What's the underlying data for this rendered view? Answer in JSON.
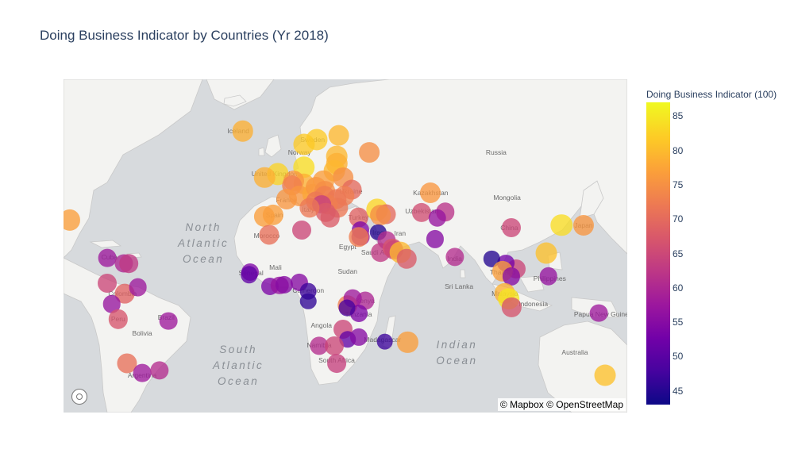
{
  "title": "Doing Business Indicator by Countries (Yr 2018)",
  "attribution": "© Mapbox © OpenStreetMap",
  "colorbar": {
    "title": "Doing Business Indicator (100)",
    "min": 43,
    "max": 87,
    "ticks": [
      85,
      80,
      75,
      70,
      65,
      60,
      55,
      50,
      45
    ],
    "colorscale": [
      "#0d0887",
      "#46039f",
      "#7201a8",
      "#9c179e",
      "#bd3786",
      "#d8576b",
      "#ed7953",
      "#fb9f3a",
      "#fdca26",
      "#f0f921"
    ]
  },
  "map_labels": {
    "countries": [
      "Iceland",
      "Sweden",
      "Norway",
      "Russia",
      "United Kingdom",
      "Ukraine",
      "Kazakhstan",
      "Mongolia",
      "France",
      "Spain",
      "Italy",
      "Uzbekistan",
      "Morocco",
      "Turkey",
      "Iraq",
      "Iran",
      "China",
      "Japan",
      "Egypt",
      "Saudi Arabia",
      "India",
      "Mali",
      "Senegal",
      "Sudan",
      "Thailand",
      "Philippines",
      "Cuba",
      "Colombia",
      "Cameroon",
      "Kenya",
      "Malaysia",
      "Indonesia",
      "Sri Lanka",
      "Peru",
      "Brazil",
      "Bolivia",
      "Angola",
      "Tanzania",
      "Madagascar",
      "Namibia",
      "South Africa",
      "Papua New Guinea",
      "Australia",
      "Argentina"
    ],
    "oceans": [
      "North Atlantic Ocean",
      "South Atlantic Ocean",
      "Indian Ocean"
    ]
  },
  "points": [
    {
      "country": "United States",
      "lat": 38,
      "lon": -97,
      "value": 77
    },
    {
      "country": "Cuba",
      "lat": 21.5,
      "lon": -80,
      "value": 58
    },
    {
      "country": "Haiti",
      "lat": 18.9,
      "lon": -72.3,
      "value": 60
    },
    {
      "country": "Dominican Republic",
      "lat": 18.7,
      "lon": -70.2,
      "value": 63
    },
    {
      "country": "Panama",
      "lat": 9,
      "lon": -80,
      "value": 65
    },
    {
      "country": "Colombia",
      "lat": 4,
      "lon": -72,
      "value": 69
    },
    {
      "country": "Venezuela",
      "lat": 7,
      "lon": -66,
      "value": 58
    },
    {
      "country": "Ecuador",
      "lat": -1.5,
      "lon": -78,
      "value": 57
    },
    {
      "country": "Peru",
      "lat": -9,
      "lon": -75,
      "value": 67
    },
    {
      "country": "Brazil",
      "lat": -10,
      "lon": -52,
      "value": 58
    },
    {
      "country": "Chile",
      "lat": -30,
      "lon": -71,
      "value": 71
    },
    {
      "country": "Argentina",
      "lat": -34,
      "lon": -64,
      "value": 58
    },
    {
      "country": "Uruguay",
      "lat": -33,
      "lon": -56,
      "value": 61
    },
    {
      "country": "Iceland",
      "lat": 65,
      "lon": -18,
      "value": 79
    },
    {
      "country": "United Kingdom",
      "lat": 54,
      "lon": -2,
      "value": 83
    },
    {
      "country": "Ireland",
      "lat": 53,
      "lon": -8,
      "value": 79
    },
    {
      "country": "Norway",
      "lat": 62,
      "lon": 10,
      "value": 82
    },
    {
      "country": "Sweden",
      "lat": 63,
      "lon": 16,
      "value": 82
    },
    {
      "country": "Finland",
      "lat": 64,
      "lon": 26,
      "value": 80
    },
    {
      "country": "Denmark",
      "lat": 56,
      "lon": 10,
      "value": 84
    },
    {
      "country": "Russia",
      "lat": 60,
      "lon": 40,
      "value": 75
    },
    {
      "country": "Estonia",
      "lat": 59,
      "lon": 25,
      "value": 80
    },
    {
      "country": "Latvia",
      "lat": 57,
      "lon": 25,
      "value": 79
    },
    {
      "country": "Lithuania",
      "lat": 55,
      "lon": 24,
      "value": 80
    },
    {
      "country": "Belarus",
      "lat": 53,
      "lon": 28,
      "value": 75
    },
    {
      "country": "Poland",
      "lat": 52,
      "lon": 19,
      "value": 77
    },
    {
      "country": "Germany",
      "lat": 51,
      "lon": 10,
      "value": 79
    },
    {
      "country": "Netherlands",
      "lat": 52,
      "lon": 5.5,
      "value": 76
    },
    {
      "country": "Belgium",
      "lat": 50.5,
      "lon": 4.5,
      "value": 73
    },
    {
      "country": "France",
      "lat": 46,
      "lon": 2,
      "value": 76
    },
    {
      "country": "Switzerland",
      "lat": 47,
      "lon": 8,
      "value": 76
    },
    {
      "country": "Austria",
      "lat": 47.5,
      "lon": 14,
      "value": 78
    },
    {
      "country": "Czech Republic",
      "lat": 49.8,
      "lon": 15.5,
      "value": 76
    },
    {
      "country": "Slovakia",
      "lat": 48.7,
      "lon": 19.5,
      "value": 75
    },
    {
      "country": "Hungary",
      "lat": 47,
      "lon": 19.5,
      "value": 73
    },
    {
      "country": "Ukraine",
      "lat": 49,
      "lon": 32,
      "value": 70
    },
    {
      "country": "Moldova",
      "lat": 47,
      "lon": 28.5,
      "value": 73
    },
    {
      "country": "Romania",
      "lat": 46,
      "lon": 25,
      "value": 72
    },
    {
      "country": "Bulgaria",
      "lat": 42.7,
      "lon": 25.5,
      "value": 72
    },
    {
      "country": "Serbia",
      "lat": 44,
      "lon": 21,
      "value": 73
    },
    {
      "country": "Croatia",
      "lat": 45.1,
      "lon": 15.5,
      "value": 72
    },
    {
      "country": "Bosnia and Herzegovina",
      "lat": 44,
      "lon": 18,
      "value": 64
    },
    {
      "country": "Albania",
      "lat": 41,
      "lon": 20,
      "value": 68
    },
    {
      "country": "Greece",
      "lat": 39,
      "lon": 22,
      "value": 68
    },
    {
      "country": "Italy",
      "lat": 42.8,
      "lon": 12.5,
      "value": 72
    },
    {
      "country": "Spain",
      "lat": 40,
      "lon": -4,
      "value": 77
    },
    {
      "country": "Portugal",
      "lat": 39.5,
      "lon": -8,
      "value": 77
    },
    {
      "country": "Morocco",
      "lat": 32,
      "lon": -6,
      "value": 71
    },
    {
      "country": "Tunisia",
      "lat": 34,
      "lon": 9,
      "value": 65
    },
    {
      "country": "Turkey",
      "lat": 39,
      "lon": 35,
      "value": 69
    },
    {
      "country": "Georgia",
      "lat": 42,
      "lon": 43.5,
      "value": 83
    },
    {
      "country": "Azerbaijan",
      "lat": 40.3,
      "lon": 47.7,
      "value": 70
    },
    {
      "country": "Armenia",
      "lat": 40,
      "lon": 45,
      "value": 75
    },
    {
      "country": "Kazakhstan",
      "lat": 48,
      "lon": 68,
      "value": 76
    },
    {
      "country": "Uzbekistan",
      "lat": 41,
      "lon": 64,
      "value": 66
    },
    {
      "country": "Kyrgyzstan",
      "lat": 41.2,
      "lon": 74.8,
      "value": 62
    },
    {
      "country": "Tajikistan",
      "lat": 38.8,
      "lon": 71,
      "value": 57
    },
    {
      "country": "Lebanon",
      "lat": 33.9,
      "lon": 35.9,
      "value": 54
    },
    {
      "country": "Jordan",
      "lat": 31,
      "lon": 36,
      "value": 58
    },
    {
      "country": "Israel",
      "lat": 31,
      "lon": 35,
      "value": 73
    },
    {
      "country": "Iraq",
      "lat": 33,
      "lon": 44,
      "value": 45
    },
    {
      "country": "Kuwait",
      "lat": 29.5,
      "lon": 47.8,
      "value": 61
    },
    {
      "country": "Saudi Arabia",
      "lat": 24,
      "lon": 45,
      "value": 63
    },
    {
      "country": "Bahrain",
      "lat": 26,
      "lon": 50.5,
      "value": 67
    },
    {
      "country": "Qatar",
      "lat": 25.3,
      "lon": 51.2,
      "value": 65
    },
    {
      "country": "United Arab Emirates",
      "lat": 24,
      "lon": 54,
      "value": 80
    },
    {
      "country": "Oman",
      "lat": 21,
      "lon": 57,
      "value": 68
    },
    {
      "country": "Pakistan",
      "lat": 30,
      "lon": 70,
      "value": 55
    },
    {
      "country": "India",
      "lat": 22,
      "lon": 79,
      "value": 61
    },
    {
      "country": "China",
      "lat": 35,
      "lon": 105,
      "value": 65
    },
    {
      "country": "South Korea",
      "lat": 36,
      "lon": 128,
      "value": 84
    },
    {
      "country": "Japan",
      "lat": 36,
      "lon": 138,
      "value": 76
    },
    {
      "country": "Taiwan",
      "lat": 23.7,
      "lon": 121,
      "value": 81
    },
    {
      "country": "Vietnam",
      "lat": 16,
      "lon": 107,
      "value": 65
    },
    {
      "country": "Laos",
      "lat": 19,
      "lon": 102.5,
      "value": 53
    },
    {
      "country": "Myanmar",
      "lat": 21,
      "lon": 96,
      "value": 45
    },
    {
      "country": "Thailand",
      "lat": 15,
      "lon": 101,
      "value": 77
    },
    {
      "country": "Cambodia",
      "lat": 12.5,
      "lon": 105,
      "value": 55
    },
    {
      "country": "Philippines",
      "lat": 12.5,
      "lon": 122,
      "value": 57
    },
    {
      "country": "Malaysia",
      "lat": 4,
      "lon": 102,
      "value": 79
    },
    {
      "country": "Singapore",
      "lat": 1.3,
      "lon": 103.8,
      "value": 85
    },
    {
      "country": "Indonesia",
      "lat": -3,
      "lon": 105,
      "value": 67
    },
    {
      "country": "Papua New Guinea",
      "lat": -6,
      "lon": 145,
      "value": 58
    },
    {
      "country": "Australia",
      "lat": -35,
      "lon": 148,
      "value": 81
    },
    {
      "country": "Senegal",
      "lat": 14.5,
      "lon": -14.5,
      "value": 54
    },
    {
      "country": "Gambia",
      "lat": 13.4,
      "lon": -15,
      "value": 51
    },
    {
      "country": "Cote d'Ivoire",
      "lat": 7.5,
      "lon": -5.5,
      "value": 54
    },
    {
      "country": "Ghana",
      "lat": 8,
      "lon": -1,
      "value": 57
    },
    {
      "country": "Togo",
      "lat": 8.5,
      "lon": 1,
      "value": 55
    },
    {
      "country": "Nigeria",
      "lat": 9.5,
      "lon": 8,
      "value": 55
    },
    {
      "country": "Cameroon",
      "lat": 5,
      "lon": 12,
      "value": 47
    },
    {
      "country": "Congo",
      "lat": 0,
      "lon": 12,
      "value": 46
    },
    {
      "country": "Kenya",
      "lat": 0.5,
      "lon": 38,
      "value": 60
    },
    {
      "country": "Rwanda",
      "lat": -2,
      "lon": 30,
      "value": 73
    },
    {
      "country": "Uganda",
      "lat": 1.4,
      "lon": 32.3,
      "value": 58
    },
    {
      "country": "Tanzania",
      "lat": -6,
      "lon": 35,
      "value": 54
    },
    {
      "country": "Burundi",
      "lat": -3.4,
      "lon": 29.9,
      "value": 48
    },
    {
      "country": "Zambia",
      "lat": -14,
      "lon": 28,
      "value": 65
    },
    {
      "country": "Zimbabwe",
      "lat": -19,
      "lon": 30,
      "value": 51
    },
    {
      "country": "Mozambique",
      "lat": -18,
      "lon": 35,
      "value": 55
    },
    {
      "country": "Madagascar",
      "lat": -20,
      "lon": 47,
      "value": 47
    },
    {
      "country": "Mauritius",
      "lat": -20.3,
      "lon": 57.5,
      "value": 77
    },
    {
      "country": "Namibia",
      "lat": -22,
      "lon": 17,
      "value": 61
    },
    {
      "country": "Botswana",
      "lat": -22,
      "lon": 24,
      "value": 65
    },
    {
      "country": "South Africa",
      "lat": -30,
      "lon": 25,
      "value": 64
    }
  ]
}
